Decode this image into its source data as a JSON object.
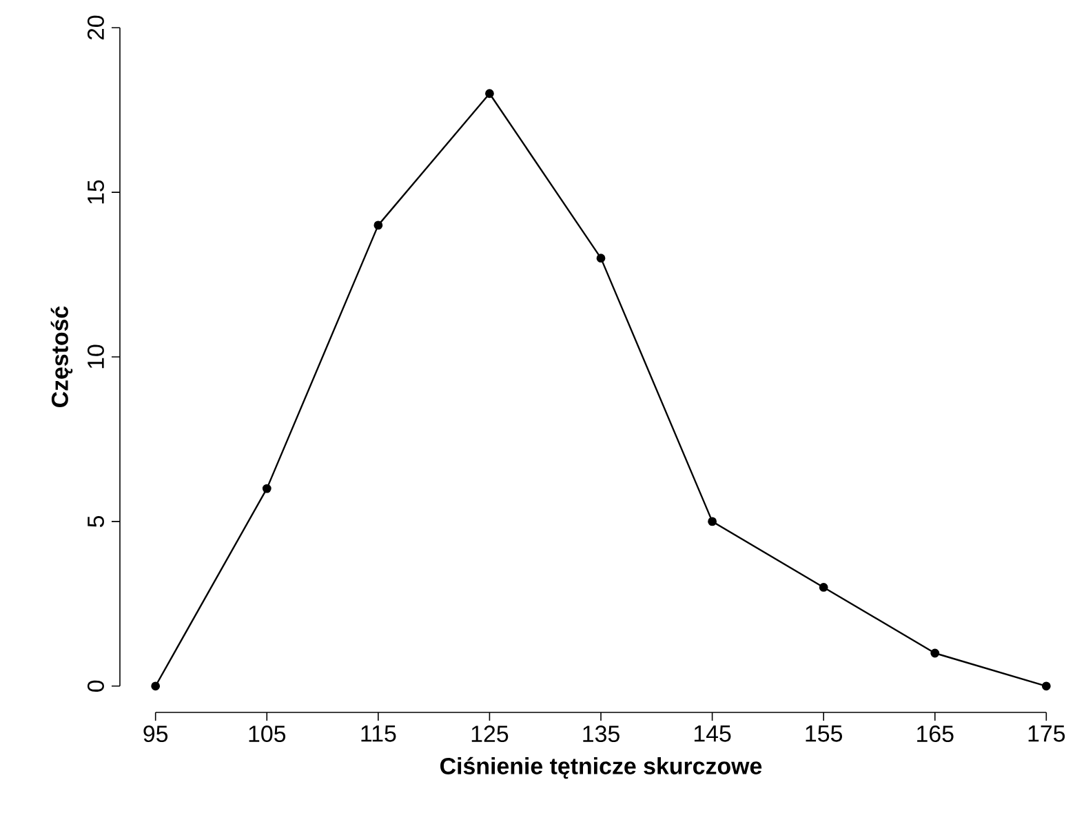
{
  "chart_data": {
    "type": "line",
    "xlabel": "Ciśnienie tętnicze skurczowe",
    "ylabel": "Częstość",
    "x": [
      95,
      105,
      115,
      125,
      135,
      145,
      155,
      165,
      175
    ],
    "values": [
      0,
      6,
      14,
      18,
      13,
      5,
      3,
      1,
      0
    ],
    "color": "#000000",
    "marker": "circle",
    "line_style": "solid",
    "xlim": [
      95,
      175
    ],
    "ylim": [
      0,
      20
    ],
    "xticks": [
      95,
      105,
      115,
      125,
      135,
      145,
      155,
      165,
      175
    ],
    "yticks": [
      0,
      5,
      10,
      15,
      20
    ]
  }
}
